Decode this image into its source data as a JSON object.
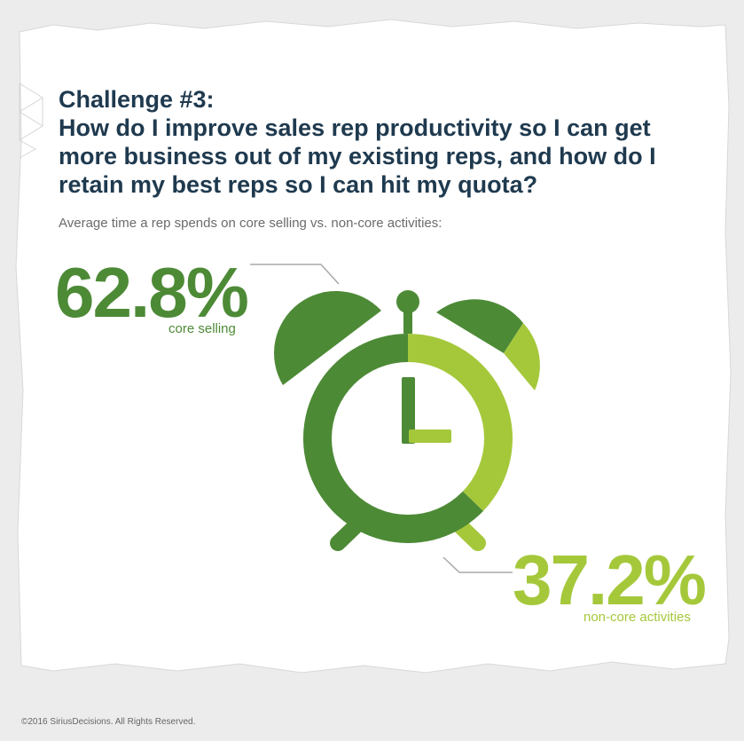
{
  "header": {
    "title_line1": "Challenge #3:",
    "title_line2": "How do I improve sales rep productivity so I can get more business out of my existing reps, and how do I retain my best reps so I can hit my quota?",
    "subtitle": "Average time a rep spends on core selling vs. non-core activities:"
  },
  "chart_data": {
    "type": "pie",
    "title": "",
    "slices": [
      {
        "label": "core selling",
        "value": 62.8,
        "value_label": "62.8%",
        "color": "#4d8a36"
      },
      {
        "label": "non-core activities",
        "value": 37.2,
        "value_label": "37.2%",
        "color": "#a5c83b"
      }
    ],
    "unit": "%",
    "legend": "labels beside the clock (top-left and bottom-right)"
  },
  "footer": {
    "copyright": "©2016 SiriusDecisions. All Rights Reserved."
  },
  "colors": {
    "title": "#1f3a4f",
    "core": "#4d8a36",
    "noncore": "#a5c83b",
    "background": "#ffffff"
  }
}
